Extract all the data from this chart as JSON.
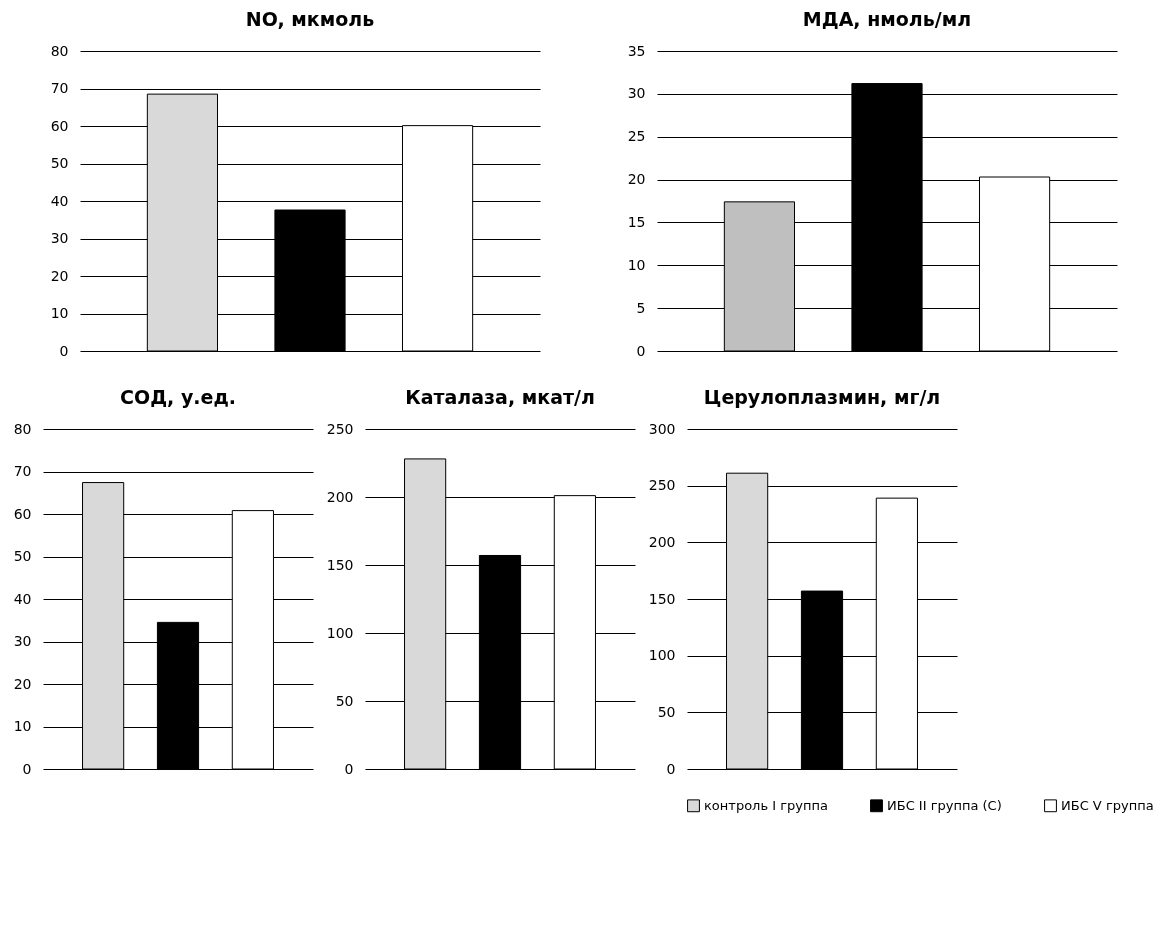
{
  "chart_data": [
    {
      "type": "bar",
      "title": "NO, мкмоль",
      "categories": [
        null
      ],
      "ylim": [
        0,
        80
      ],
      "yticks": [
        0,
        10,
        20,
        30,
        40,
        50,
        60,
        70,
        80
      ],
      "grid": "y",
      "series": [
        {
          "color": "#d9d9d9",
          "values": [
            68.5
          ]
        },
        {
          "color": "#000000",
          "values": [
            37.6
          ]
        },
        {
          "color": "#ffffff",
          "values": [
            60.1
          ]
        }
      ]
    },
    {
      "type": "bar",
      "title": "МДА, нмоль/мл",
      "categories": [
        null
      ],
      "ylim": [
        0,
        35
      ],
      "yticks": [
        0,
        5,
        10,
        15,
        20,
        25,
        30,
        35
      ],
      "grid": "y",
      "series": [
        {
          "color": "#bfbfbf",
          "values": [
            17.4
          ]
        },
        {
          "color": "#000000",
          "values": [
            31.2
          ]
        },
        {
          "color": "#ffffff",
          "values": [
            20.3
          ]
        }
      ]
    },
    {
      "type": "bar",
      "title": "СОД, у.ед.",
      "categories": [
        null
      ],
      "ylim": [
        0,
        80
      ],
      "yticks": [
        0,
        10,
        20,
        30,
        40,
        50,
        60,
        70,
        80
      ],
      "grid": "y",
      "series": [
        {
          "color": "#d9d9d9",
          "values": [
            67.4
          ]
        },
        {
          "color": "#000000",
          "values": [
            34.5
          ]
        },
        {
          "color": "#ffffff",
          "values": [
            60.8
          ]
        }
      ]
    },
    {
      "type": "bar",
      "title": "Каталаза,  мкат/л",
      "categories": [
        null
      ],
      "ylim": [
        0,
        250
      ],
      "yticks": [
        0,
        50,
        100,
        150,
        200,
        250
      ],
      "grid": "y",
      "series": [
        {
          "color": "#d9d9d9",
          "values": [
            228
          ]
        },
        {
          "color": "#000000",
          "values": [
            157
          ]
        },
        {
          "color": "#ffffff",
          "values": [
            201
          ]
        }
      ]
    },
    {
      "type": "bar",
      "title": "Церулоплазмин, мг/л",
      "categories": [
        null
      ],
      "ylim": [
        0,
        300
      ],
      "yticks": [
        0,
        50,
        100,
        150,
        200,
        250,
        300
      ],
      "grid": "y",
      "legend": "bottom",
      "series": [
        {
          "name": "контроль I группа",
          "color": "#d9d9d9",
          "values": [
            261
          ]
        },
        {
          "name": "ИБС II группа (С)",
          "color": "#000000",
          "values": [
            157
          ]
        },
        {
          "name": "ИБС V группа",
          "color": "#ffffff",
          "values": [
            239
          ]
        }
      ]
    }
  ]
}
